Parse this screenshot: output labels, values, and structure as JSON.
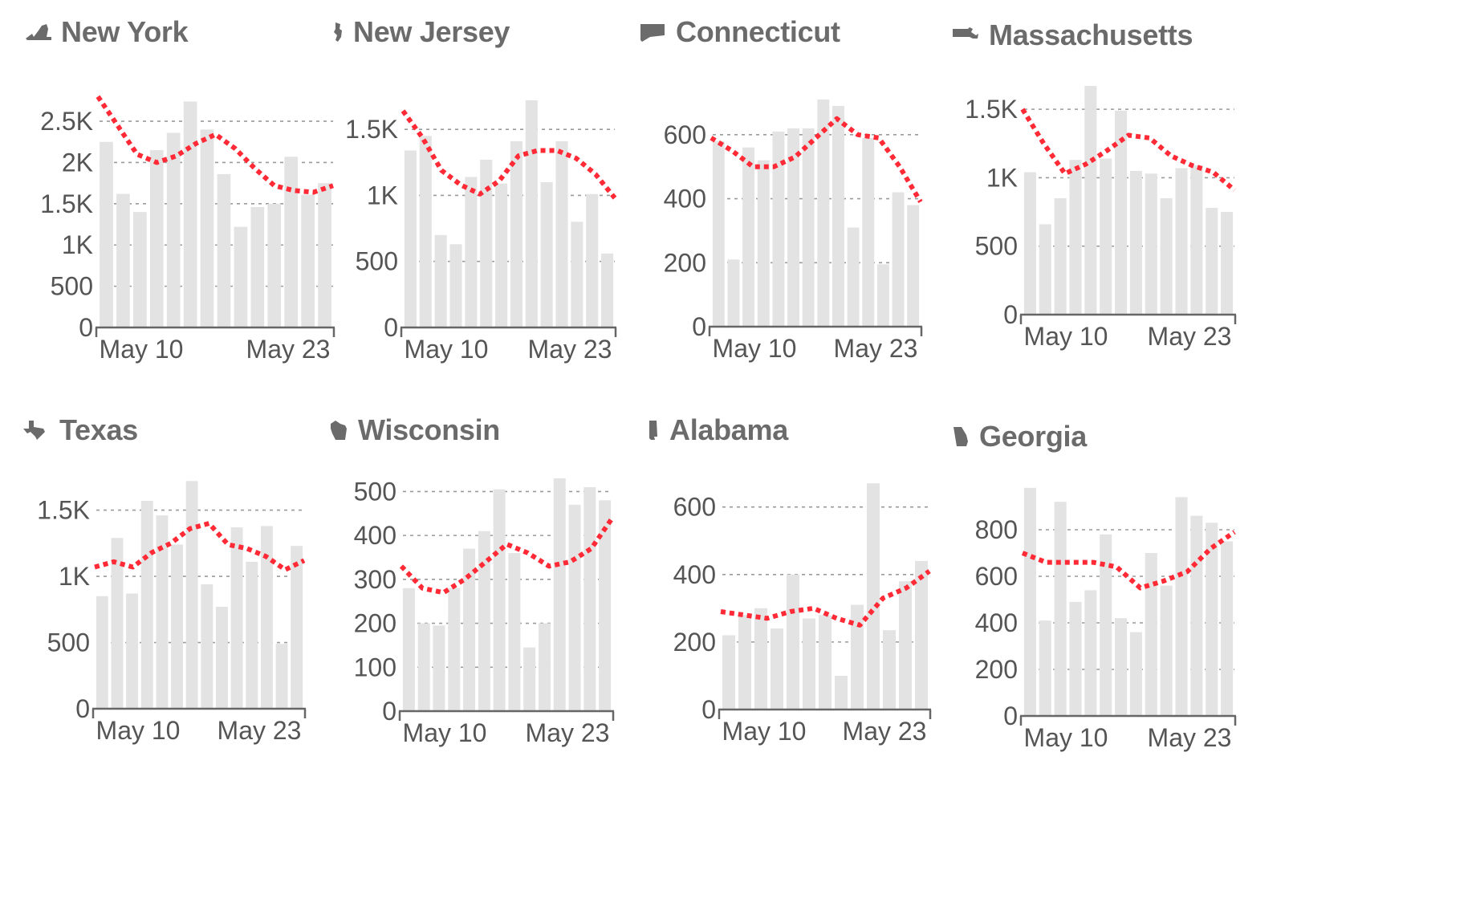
{
  "colors": {
    "bar": "#e3e3e3",
    "line": "#ff2a36",
    "grid": "#9a9a9a",
    "axis": "#666666",
    "text": "#555555",
    "title": "#6b6b6b"
  },
  "chart_data": [
    {
      "type": "bar",
      "title": "New York",
      "icon": "new-york-state-icon",
      "x_ticks": [
        "May 10",
        "May 23"
      ],
      "ylim": [
        0,
        2900
      ],
      "y_ticks": [
        {
          "value": 0,
          "label": "0"
        },
        {
          "value": 500,
          "label": "500"
        },
        {
          "value": 1000,
          "label": "1K"
        },
        {
          "value": 1500,
          "label": "1.5K"
        },
        {
          "value": 2000,
          "label": "2K"
        },
        {
          "value": 2500,
          "label": "2.5K"
        }
      ],
      "values": [
        2250,
        1620,
        1400,
        2150,
        2360,
        2740,
        2400,
        1860,
        1220,
        1460,
        1500,
        2070,
        1610,
        1750
      ],
      "moving_average": [
        2800,
        2450,
        2100,
        2000,
        2080,
        2230,
        2340,
        2170,
        1930,
        1720,
        1660,
        1640,
        1720
      ]
    },
    {
      "type": "bar",
      "title": "New Jersey",
      "icon": "new-jersey-state-icon",
      "x_ticks": [
        "May 10",
        "May 23"
      ],
      "ylim": [
        0,
        1750
      ],
      "y_ticks": [
        {
          "value": 0,
          "label": "0"
        },
        {
          "value": 500,
          "label": "500"
        },
        {
          "value": 1000,
          "label": "1K"
        },
        {
          "value": 1500,
          "label": "1.5K"
        }
      ],
      "values": [
        1340,
        1450,
        700,
        630,
        1140,
        1270,
        1090,
        1410,
        1720,
        1100,
        1410,
        800,
        1010,
        560
      ],
      "moving_average": [
        1640,
        1440,
        1190,
        1080,
        1010,
        1110,
        1300,
        1340,
        1340,
        1280,
        1160,
        980
      ]
    },
    {
      "type": "bar",
      "title": "Connecticut",
      "icon": "connecticut-state-icon",
      "x_ticks": [
        "May 10",
        "May 23"
      ],
      "ylim": [
        0,
        720
      ],
      "y_ticks": [
        {
          "value": 0,
          "label": "0"
        },
        {
          "value": 200,
          "label": "200"
        },
        {
          "value": 400,
          "label": "400"
        },
        {
          "value": 600,
          "label": "600"
        }
      ],
      "values": [
        580,
        210,
        560,
        520,
        610,
        620,
        620,
        710,
        690,
        310,
        590,
        195,
        420,
        380
      ],
      "moving_average": [
        590,
        550,
        500,
        500,
        530,
        590,
        650,
        600,
        590,
        500,
        390
      ]
    },
    {
      "type": "bar",
      "title": "Massachusetts",
      "icon": "massachusetts-state-icon",
      "x_ticks": [
        "May 10",
        "May 23"
      ],
      "ylim": [
        0,
        1700
      ],
      "y_ticks": [
        {
          "value": 0,
          "label": "0"
        },
        {
          "value": 500,
          "label": "500"
        },
        {
          "value": 1000,
          "label": "1K"
        },
        {
          "value": 1500,
          "label": "1.5K"
        }
      ],
      "values": [
        1040,
        660,
        850,
        1130,
        1670,
        1140,
        1490,
        1050,
        1030,
        850,
        1070,
        1090,
        780,
        750
      ],
      "moving_average": [
        1500,
        1250,
        1030,
        1100,
        1200,
        1310,
        1290,
        1160,
        1090,
        1040,
        910
      ]
    },
    {
      "type": "bar",
      "title": "Texas",
      "icon": "texas-state-icon",
      "x_ticks": [
        "May 10",
        "May 23"
      ],
      "ylim": [
        0,
        1740
      ],
      "y_ticks": [
        {
          "value": 0,
          "label": "0"
        },
        {
          "value": 500,
          "label": "500"
        },
        {
          "value": 1000,
          "label": "1K"
        },
        {
          "value": 1500,
          "label": "1.5K"
        }
      ],
      "values": [
        850,
        1290,
        870,
        1570,
        1460,
        1240,
        1720,
        940,
        770,
        1370,
        1110,
        1380,
        490,
        1230
      ],
      "moving_average": [
        1070,
        1110,
        1070,
        1180,
        1250,
        1360,
        1400,
        1240,
        1210,
        1150,
        1050,
        1120
      ]
    },
    {
      "type": "bar",
      "title": "Wisconsin",
      "icon": "wisconsin-state-icon",
      "x_ticks": [
        "May 10",
        "May 23"
      ],
      "ylim": [
        0,
        530
      ],
      "y_ticks": [
        {
          "value": 0,
          "label": "0"
        },
        {
          "value": 100,
          "label": "100"
        },
        {
          "value": 200,
          "label": "200"
        },
        {
          "value": 300,
          "label": "300"
        },
        {
          "value": 400,
          "label": "400"
        },
        {
          "value": 500,
          "label": "500"
        }
      ],
      "values": [
        280,
        200,
        195,
        280,
        370,
        410,
        505,
        360,
        145,
        200,
        530,
        470,
        510,
        480
      ],
      "moving_average": [
        330,
        280,
        270,
        300,
        340,
        380,
        360,
        330,
        340,
        370,
        440
      ]
    },
    {
      "type": "bar",
      "title": "Alabama",
      "icon": "alabama-state-icon",
      "x_ticks": [
        "May 10",
        "May 23"
      ],
      "ylim": [
        0,
        680
      ],
      "y_ticks": [
        {
          "value": 0,
          "label": "0"
        },
        {
          "value": 200,
          "label": "200"
        },
        {
          "value": 400,
          "label": "400"
        },
        {
          "value": 600,
          "label": "600"
        }
      ],
      "values": [
        220,
        280,
        300,
        240,
        400,
        270,
        280,
        100,
        310,
        670,
        235,
        380,
        440
      ],
      "moving_average": [
        290,
        280,
        270,
        290,
        300,
        270,
        250,
        330,
        360,
        410
      ]
    },
    {
      "type": "bar",
      "title": "Georgia",
      "icon": "georgia-state-icon",
      "x_ticks": [
        "May 10",
        "May 23"
      ],
      "ylim": [
        0,
        1000
      ],
      "y_ticks": [
        {
          "value": 0,
          "label": "0"
        },
        {
          "value": 200,
          "label": "200"
        },
        {
          "value": 400,
          "label": "400"
        },
        {
          "value": 600,
          "label": "600"
        },
        {
          "value": 800,
          "label": "800"
        }
      ],
      "values": [
        980,
        410,
        920,
        490,
        540,
        780,
        420,
        360,
        700,
        560,
        940,
        860,
        830,
        750
      ],
      "moving_average": [
        700,
        660,
        660,
        660,
        640,
        550,
        580,
        620,
        720,
        790
      ]
    }
  ]
}
